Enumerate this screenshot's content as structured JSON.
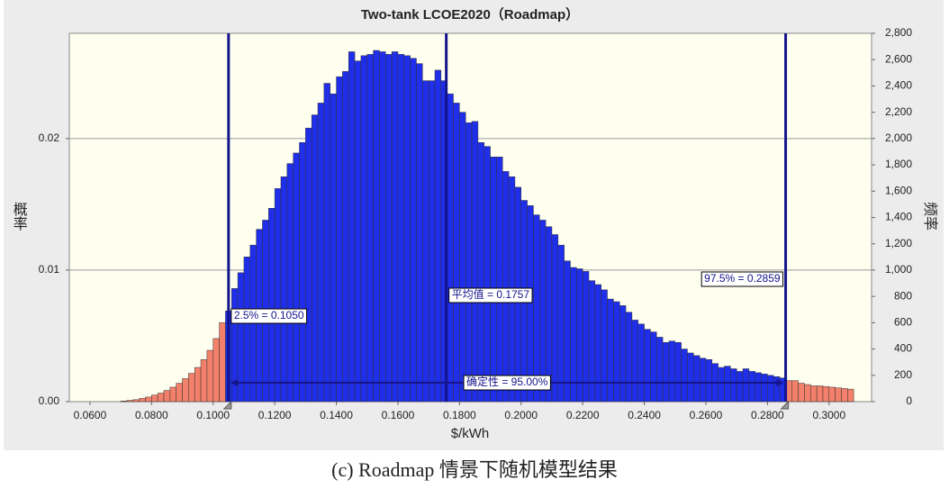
{
  "chart_data": {
    "type": "histogram",
    "title": "Two-tank LCOE2020（Roadmap）",
    "x_label": "$/kWh",
    "y_label": "频率",
    "y2_label": "概率",
    "bins": [
      0.07,
      0.072,
      0.074,
      0.076,
      0.078,
      0.08,
      0.082,
      0.084,
      0.086,
      0.088,
      0.09,
      0.092,
      0.094,
      0.096,
      0.098,
      0.1,
      0.102,
      0.104,
      0.106,
      0.108,
      0.11,
      0.112,
      0.114,
      0.116,
      0.118,
      0.12,
      0.122,
      0.124,
      0.126,
      0.128,
      0.13,
      0.132,
      0.134,
      0.136,
      0.138,
      0.14,
      0.142,
      0.144,
      0.146,
      0.148,
      0.15,
      0.152,
      0.154,
      0.156,
      0.158,
      0.16,
      0.162,
      0.164,
      0.166,
      0.168,
      0.17,
      0.172,
      0.174,
      0.176,
      0.178,
      0.18,
      0.182,
      0.184,
      0.186,
      0.188,
      0.19,
      0.192,
      0.194,
      0.196,
      0.198,
      0.2,
      0.202,
      0.204,
      0.206,
      0.208,
      0.21,
      0.212,
      0.214,
      0.216,
      0.218,
      0.22,
      0.222,
      0.224,
      0.226,
      0.228,
      0.23,
      0.232,
      0.234,
      0.236,
      0.238,
      0.24,
      0.242,
      0.244,
      0.246,
      0.248,
      0.25,
      0.252,
      0.254,
      0.256,
      0.258,
      0.26,
      0.262,
      0.264,
      0.266,
      0.268,
      0.27,
      0.272,
      0.274,
      0.276,
      0.278,
      0.28,
      0.282,
      0.284,
      0.286,
      0.288,
      0.29,
      0.292,
      0.294,
      0.296,
      0.298,
      0.3,
      0.302,
      0.304,
      0.306,
      0.308
    ],
    "values": [
      5,
      10,
      15,
      25,
      35,
      50,
      65,
      85,
      110,
      140,
      175,
      215,
      260,
      320,
      390,
      480,
      600,
      690,
      860,
      980,
      1100,
      1190,
      1310,
      1380,
      1470,
      1620,
      1710,
      1810,
      1890,
      1970,
      2080,
      2180,
      2270,
      2420,
      2340,
      2470,
      2510,
      2660,
      2590,
      2630,
      2640,
      2670,
      2660,
      2640,
      2660,
      2640,
      2630,
      2610,
      2570,
      2440,
      2440,
      2520,
      2440,
      2340,
      2270,
      2200,
      2120,
      2130,
      1970,
      1940,
      1860,
      1860,
      1750,
      1710,
      1630,
      1530,
      1490,
      1420,
      1380,
      1330,
      1270,
      1190,
      1070,
      1020,
      1010,
      990,
      920,
      890,
      850,
      780,
      760,
      730,
      680,
      620,
      590,
      550,
      530,
      490,
      450,
      460,
      450,
      400,
      370,
      350,
      330,
      320,
      290,
      260,
      270,
      250,
      230,
      250,
      230,
      220,
      210,
      200,
      190,
      180,
      160,
      160,
      140,
      130,
      120,
      120,
      115,
      110,
      105,
      100,
      95
    ],
    "color": "#1f2ee8",
    "tail_color": "#f2806a",
    "xlim": [
      0.0533,
      0.3138
    ],
    "xticks": [
      {
        "value": 0.06,
        "label": "0.0600"
      },
      {
        "value": 0.08,
        "label": "0.0800"
      },
      {
        "value": 0.1,
        "label": "0.1000"
      },
      {
        "value": 0.12,
        "label": "0.1200"
      },
      {
        "value": 0.14,
        "label": "0.1400"
      },
      {
        "value": 0.16,
        "label": "0.1600"
      },
      {
        "value": 0.18,
        "label": "0.1800"
      },
      {
        "value": 0.2,
        "label": "0.2000"
      },
      {
        "value": 0.22,
        "label": "0.2200"
      },
      {
        "value": 0.24,
        "label": "0.2400"
      },
      {
        "value": 0.26,
        "label": "0.2600"
      },
      {
        "value": 0.28,
        "label": "0.2800"
      },
      {
        "value": 0.3,
        "label": "0.3000"
      }
    ],
    "ylim": [
      0,
      2800
    ],
    "yticks": [
      0,
      200,
      400,
      600,
      800,
      {
        "value": 1000,
        "label": "1,000"
      },
      {
        "value": 1200,
        "label": "1,200"
      },
      {
        "value": 1400,
        "label": "1,400"
      },
      {
        "value": 1600,
        "label": "1,600"
      },
      {
        "value": 1800,
        "label": "1,800"
      },
      {
        "value": 2000,
        "label": "2,000"
      },
      {
        "value": 2200,
        "label": "2,200"
      },
      {
        "value": 2400,
        "label": "2,400"
      },
      {
        "value": 2600,
        "label": "2,600"
      },
      {
        "value": 2800,
        "label": "2,800"
      }
    ],
    "y2lim": [
      0,
      0.028
    ],
    "y2ticks": [
      {
        "value": 0,
        "label": "0.00"
      },
      {
        "value": 0.01,
        "label": "0.01"
      },
      {
        "value": 0.02,
        "label": "0.02"
      }
    ],
    "grid": true,
    "markers": [
      {
        "value": 0.105,
        "label": "2.5% = 0.1050"
      },
      {
        "value": 0.1757,
        "label": "平均值 = 0.1757"
      },
      {
        "value": 0.2859,
        "label": "97.5% = 0.2859"
      }
    ],
    "certainty_label": "确定性 = 95.00%"
  },
  "caption": "(c) Roadmap 情景下随机模型结果"
}
